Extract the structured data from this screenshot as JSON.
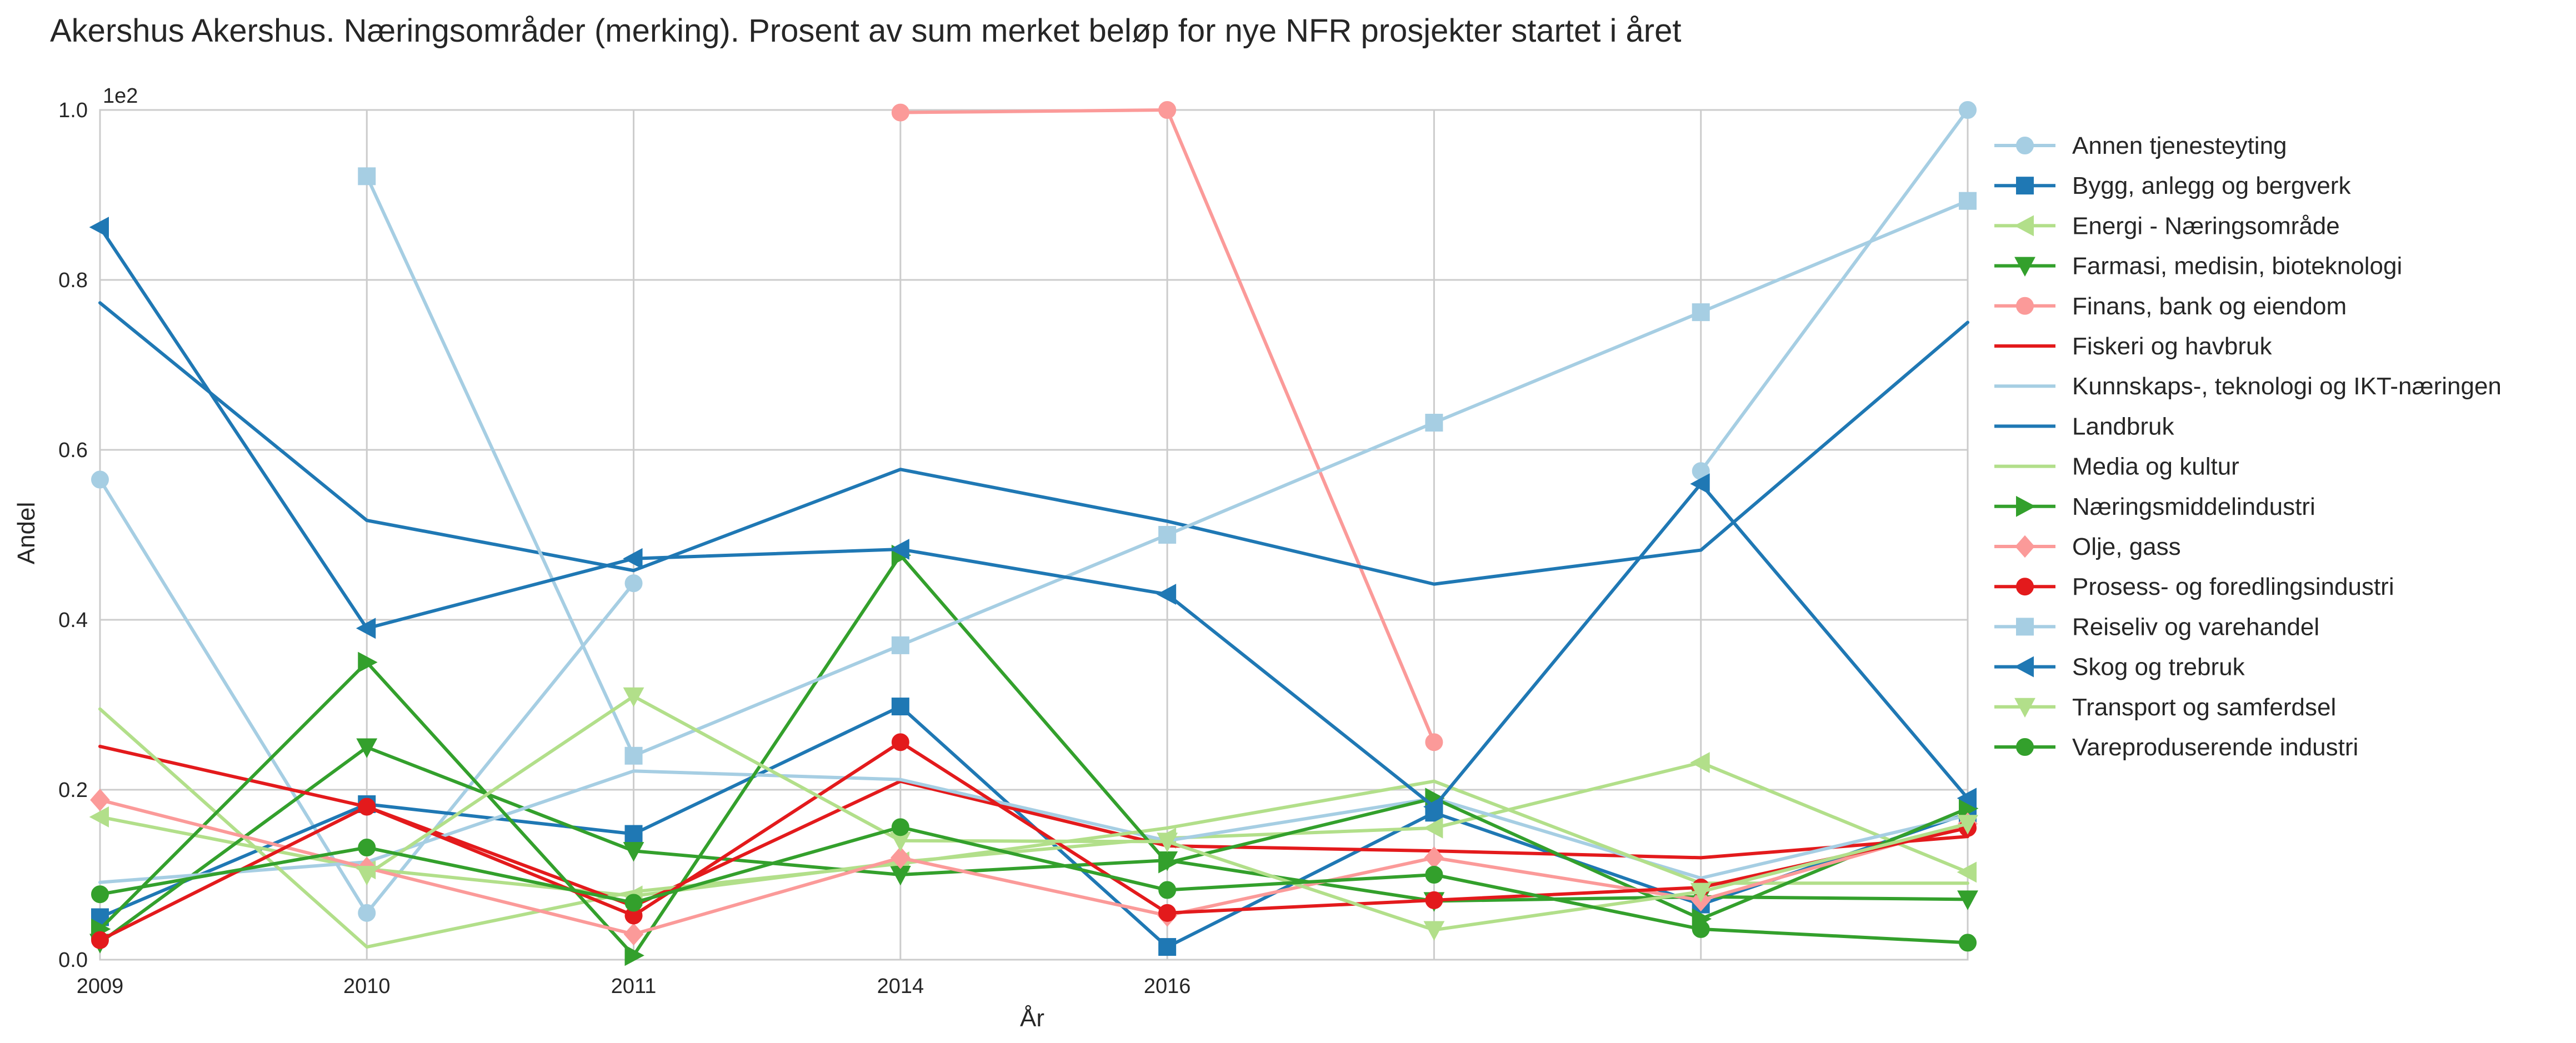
{
  "chart_data": {
    "type": "line",
    "title": "Akershus Akershus. Næringsområder (merking). Prosent av sum merket beløp for nye NFR prosjekter startet i året",
    "xlabel": "År",
    "ylabel": "Andel",
    "y_offset_text": "1e2",
    "ylim": [
      0.0,
      1.0
    ],
    "y_ticks": [
      "0.0",
      "0.2",
      "0.4",
      "0.6",
      "0.8",
      "1.0"
    ],
    "x_tick_labels": [
      "2009",
      "2010",
      "2011",
      "2014",
      "2016"
    ],
    "x_positions": [
      0,
      1,
      2,
      3,
      4,
      5,
      6,
      7
    ],
    "xlim": [
      0,
      7
    ],
    "grid": true,
    "legend_placement": "right outside",
    "series": [
      {
        "name": "Annen tjenesteyting",
        "color": "#a6cee3",
        "marker": "circle",
        "values": [
          0.565,
          0.055,
          0.443,
          null,
          null,
          null,
          0.575,
          1.0
        ]
      },
      {
        "name": "Bygg, anlegg og bergverk",
        "color": "#1f78b4",
        "marker": "square",
        "values": [
          0.05,
          0.183,
          0.148,
          0.298,
          0.015,
          0.173,
          0.065,
          0.172
        ]
      },
      {
        "name": "Energi - Næringsområde",
        "color": "#b2df8a",
        "marker": "triangle-left",
        "values": [
          0.168,
          0.107,
          0.075,
          0.115,
          0.143,
          0.155,
          0.232,
          0.103
        ]
      },
      {
        "name": "Farmasi, medisin, bioteknologi",
        "color": "#33a02c",
        "marker": "triangle-down",
        "values": [
          0.02,
          0.25,
          0.128,
          0.1,
          0.117,
          0.069,
          0.074,
          0.071
        ]
      },
      {
        "name": "Finans, bank og eiendom",
        "color": "#fb9a99",
        "marker": "octagon",
        "values": [
          null,
          null,
          null,
          0.997,
          1.0,
          0.256,
          null,
          null
        ]
      },
      {
        "name": "Fiskeri og havbruk",
        "color": "#e31a1c",
        "marker": "none",
        "values": [
          0.251,
          0.18,
          0.063,
          0.21,
          0.134,
          0.128,
          0.12,
          0.145
        ]
      },
      {
        "name": "Kunnskaps-, teknologi og IKT-næringen",
        "color": "#a6cee3",
        "marker": "none",
        "values": [
          0.091,
          0.115,
          0.222,
          0.212,
          0.14,
          0.19,
          0.096,
          0.17
        ]
      },
      {
        "name": "Landbruk",
        "color": "#1f78b4",
        "marker": "none",
        "values": [
          0.773,
          0.517,
          0.458,
          0.577,
          0.516,
          0.442,
          0.482,
          0.75
        ]
      },
      {
        "name": "Media og kultur",
        "color": "#b2df8a",
        "marker": "none",
        "values": [
          0.295,
          0.015,
          0.08,
          0.113,
          0.155,
          0.21,
          0.09,
          0.09
        ]
      },
      {
        "name": "Næringsmiddelindustri",
        "color": "#33a02c",
        "marker": "triangle-right",
        "values": [
          0.036,
          0.35,
          0.005,
          0.476,
          0.114,
          0.19,
          0.048,
          0.178
        ]
      },
      {
        "name": "Olje, gass",
        "color": "#fb9a99",
        "marker": "diamond",
        "values": [
          0.188,
          0.108,
          0.03,
          0.12,
          0.052,
          0.12,
          0.07,
          0.16
        ]
      },
      {
        "name": "Prosess- og foredlingsindustri",
        "color": "#e31a1c",
        "marker": "circle",
        "values": [
          0.023,
          0.18,
          0.052,
          0.256,
          0.055,
          0.07,
          0.085,
          0.155
        ]
      },
      {
        "name": "Reiseliv og varehandel",
        "color": "#a6cee3",
        "marker": "square",
        "values": [
          null,
          0.922,
          0.24,
          0.37,
          0.5,
          0.632,
          0.762,
          0.893
        ]
      },
      {
        "name": "Skog og trebruk",
        "color": "#1f78b4",
        "marker": "triangle-left",
        "values": [
          0.862,
          0.39,
          0.472,
          0.483,
          0.43,
          0.18,
          0.56,
          0.19
        ]
      },
      {
        "name": "Transport og samferdsel",
        "color": "#b2df8a",
        "marker": "triangle-down",
        "values": [
          null,
          0.1,
          0.31,
          0.14,
          0.139,
          0.035,
          0.08,
          0.16
        ]
      },
      {
        "name": "Vareproduserende industri",
        "color": "#33a02c",
        "marker": "circle",
        "values": [
          0.077,
          0.132,
          0.067,
          0.156,
          0.082,
          0.1,
          0.036,
          0.02
        ]
      }
    ]
  }
}
